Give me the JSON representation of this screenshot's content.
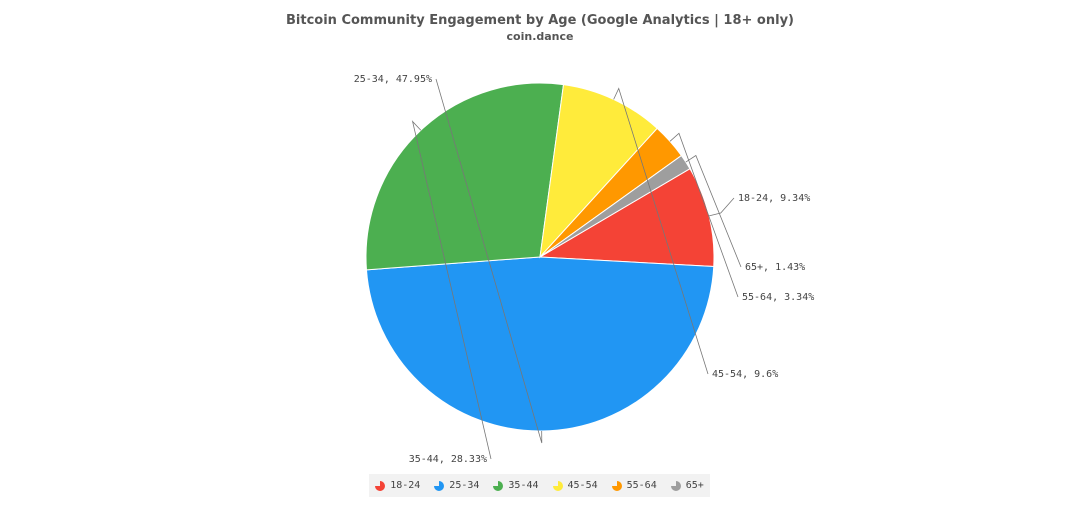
{
  "chart_data": {
    "type": "pie",
    "title": "Bitcoin Community Engagement by Age (Google Analytics | 18+ only)",
    "subtitle": "coin.dance",
    "legend_position": "bottom",
    "slices": [
      {
        "label": "18-24",
        "value": 9.34,
        "data_label": "18-24, 9.34%",
        "color": "#f44336"
      },
      {
        "label": "25-34",
        "value": 47.95,
        "data_label": "25-34, 47.95%",
        "color": "#2196f3"
      },
      {
        "label": "35-44",
        "value": 28.33,
        "data_label": "35-44, 28.33%",
        "color": "#4caf50"
      },
      {
        "label": "45-54",
        "value": 9.6,
        "data_label": "45-54, 9.6%",
        "color": "#ffeb3b"
      },
      {
        "label": "55-64",
        "value": 3.34,
        "data_label": "55-64, 3.34%",
        "color": "#ff9800"
      },
      {
        "label": "65+",
        "value": 1.43,
        "data_label": "65+, 1.43%",
        "color": "#9e9e9e"
      }
    ]
  }
}
